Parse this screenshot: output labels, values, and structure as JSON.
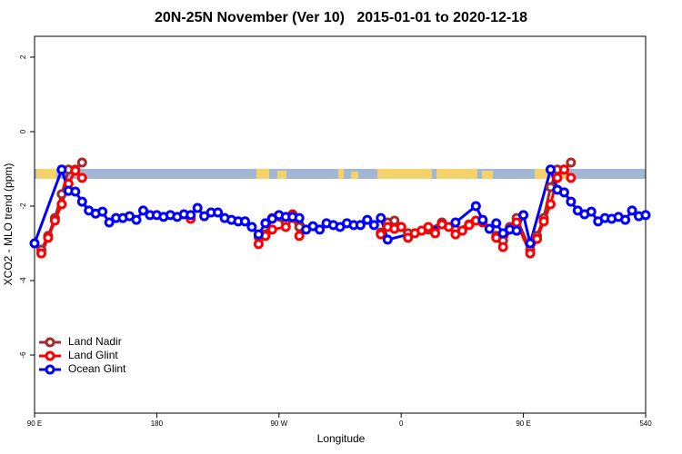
{
  "chart_data": {
    "type": "line",
    "title": "20N-25N November (Ver 10)   2015-01-01 to 2020-12-18",
    "x_label": "Longitude",
    "y_label": "XCO2 - MLO trend (ppm)",
    "xlim": [
      90,
      540
    ],
    "ylim": [
      -7.56,
      2.56
    ],
    "xticks": [
      {
        "value": 90,
        "label": "90 E"
      },
      180,
      {
        "value": 270,
        "label": "90 W"
      },
      {
        "value": 360,
        "label": "0"
      },
      {
        "value": 450,
        "label": "90 E"
      },
      540
    ],
    "yticks": [
      2,
      0,
      -2,
      -4,
      -6
    ],
    "legend": "bottom-left",
    "series": [
      {
        "name": "Land Nadir",
        "color": "#a52a2a",
        "x": [
          95,
          100,
          105,
          110,
          115,
          120,
          125,
          250,
          255,
          260,
          265,
          275,
          280,
          285,
          300,
          345,
          350,
          355,
          360,
          365,
          380,
          390,
          400,
          410,
          420,
          430,
          435,
          440,
          445,
          455,
          460,
          465,
          470,
          475,
          480,
          485
        ],
        "values": [
          -3.17,
          -2.8,
          -2.32,
          -1.68,
          -1.02,
          -1.02,
          -0.83,
          null,
          -2.83,
          -2.76,
          -2.32,
          -2.44,
          -2.32,
          -2.56,
          null,
          -2.71,
          -2.44,
          -2.39,
          -2.56,
          -2.73,
          -2.63,
          -2.44,
          -2.63,
          -2.49,
          null,
          -2.8,
          -2.93,
          -2.56,
          -2.32,
          -3.17,
          -2.8,
          -2.32,
          -1.49,
          -1.02,
          -1.02,
          -0.83
        ]
      },
      {
        "name": "Land Glint",
        "color": "#ff0000",
        "x": [
          95,
          100,
          105,
          110,
          115,
          120,
          125,
          200,
          205,
          250,
          255,
          260,
          265,
          275,
          280,
          285,
          300,
          345,
          350,
          355,
          360,
          365,
          370,
          375,
          380,
          385,
          390,
          395,
          400,
          405,
          410,
          415,
          420,
          425,
          430,
          435,
          440,
          445,
          455,
          460,
          465,
          470,
          475,
          480,
          485
        ],
        "values": [
          -3.27,
          -2.85,
          -2.39,
          -1.95,
          -1.4,
          -1.05,
          -1.24,
          null,
          -2.34,
          null,
          -3.02,
          -2.8,
          -2.63,
          -2.56,
          -2.22,
          -2.8,
          null,
          -2.76,
          -2.56,
          -2.61,
          -2.56,
          -2.85,
          -2.73,
          -2.66,
          -2.56,
          -2.73,
          -2.49,
          -2.56,
          -2.76,
          -2.66,
          -2.51,
          -2.39,
          -2.44,
          null,
          -2.85,
          -3.1,
          -2.61,
          -2.44,
          -3.27,
          -2.88,
          -2.41,
          -1.95,
          -1.24,
          -1.02,
          -1.24
        ]
      },
      {
        "name": "Ocean Glint",
        "color": "#0000ff",
        "x": [
          90,
          110,
          115,
          120,
          125,
          130,
          135,
          140,
          145,
          150,
          155,
          160,
          165,
          170,
          175,
          180,
          185,
          190,
          195,
          200,
          205,
          210,
          215,
          220,
          225,
          230,
          235,
          240,
          245,
          250,
          255,
          260,
          265,
          270,
          275,
          280,
          285,
          290,
          295,
          300,
          305,
          310,
          315,
          320,
          325,
          330,
          335,
          340,
          345,
          350,
          400,
          415,
          420,
          425,
          430,
          435,
          440,
          445,
          450,
          455,
          470,
          475,
          480,
          485,
          490,
          495,
          500,
          505,
          510,
          515,
          520,
          525,
          530,
          535,
          540
        ],
        "values": [
          -3.0,
          -1.02,
          -1.59,
          -1.61,
          -1.88,
          -2.12,
          -2.2,
          -2.15,
          -2.44,
          -2.32,
          -2.32,
          -2.27,
          -2.37,
          -2.12,
          -2.24,
          -2.24,
          -2.29,
          -2.24,
          -2.29,
          -2.22,
          -2.24,
          -2.05,
          -2.27,
          -2.17,
          -2.17,
          -2.32,
          -2.37,
          -2.41,
          -2.41,
          -2.56,
          -2.76,
          -2.46,
          -2.34,
          -2.24,
          -2.29,
          -2.29,
          -2.32,
          -2.63,
          -2.54,
          -2.63,
          -2.46,
          -2.51,
          -2.56,
          -2.46,
          -2.51,
          -2.51,
          -2.37,
          -2.51,
          -2.32,
          -2.9,
          -2.44,
          -2.0,
          -2.37,
          -2.61,
          -2.46,
          -2.73,
          -2.63,
          -2.66,
          -2.24,
          -3.0,
          -1.02,
          -1.56,
          -1.63,
          -1.88,
          -2.12,
          -2.22,
          -2.15,
          -2.41,
          -2.32,
          -2.34,
          -2.29,
          -2.37,
          -2.12,
          -2.27,
          -2.24
        ]
      }
    ]
  }
}
